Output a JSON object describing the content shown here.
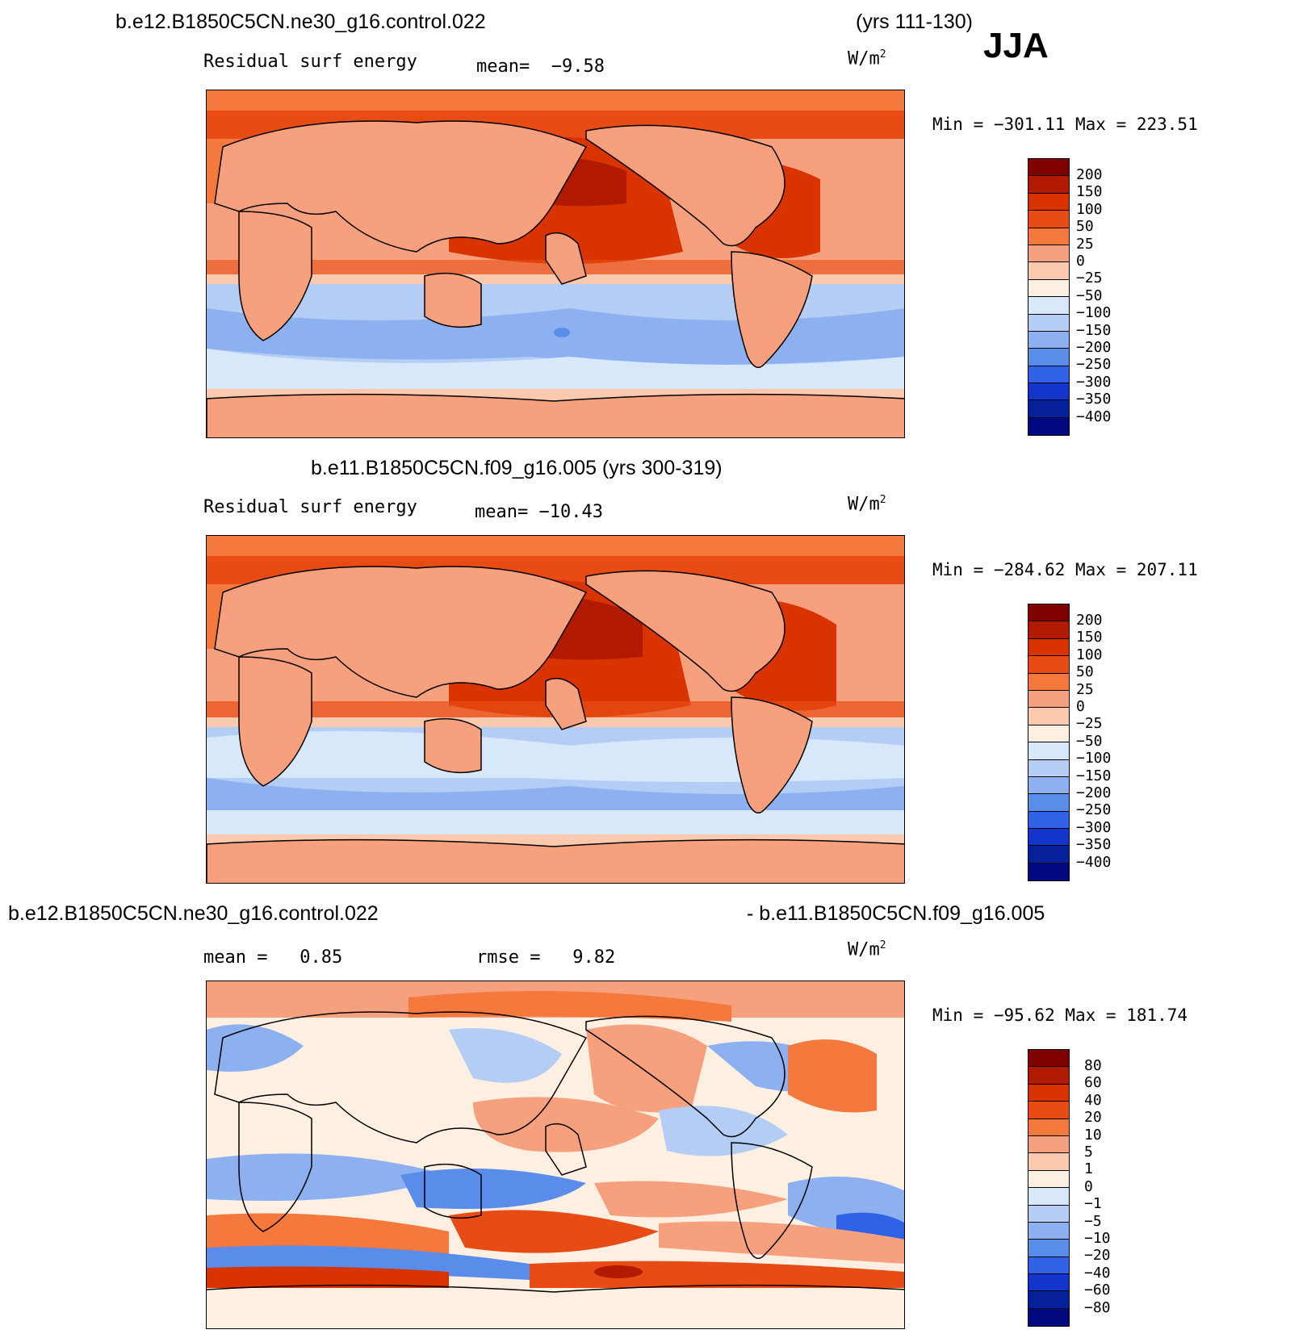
{
  "season": "JJA",
  "panels": [
    {
      "id": "top",
      "case_title": "b.e12.B1850C5CN.ne30_g16.control.022",
      "years": "(yrs 111-130)",
      "left_label": "Residual surf energy",
      "mean_text": "mean=  −9.58",
      "units": "W/m",
      "units_exp": "2",
      "minmax": "Min = −301.11 Max = 223.51"
    },
    {
      "id": "middle",
      "case_title": "b.e11.B1850C5CN.f09_g16.005 (yrs 300-319)",
      "left_label": "Residual surf energy",
      "mean_text": "mean= −10.43",
      "units": "W/m",
      "units_exp": "2",
      "minmax": "Min = −284.62 Max = 207.11"
    },
    {
      "id": "bottom",
      "case_title_left": "b.e12.B1850C5CN.ne30_g16.control.022",
      "case_title_right": "- b.e11.B1850C5CN.f09_g16.005",
      "mean_text": "mean =   0.85",
      "rmse_text": "rmse =   9.82",
      "units": "W/m",
      "units_exp": "2",
      "minmax": "Min = −95.62 Max = 181.74"
    }
  ],
  "colorbar_abs": {
    "labels": [
      "200",
      "150",
      "100",
      "50",
      "25",
      "0",
      "−25",
      "−50",
      "−100",
      "−150",
      "−200",
      "−250",
      "−300",
      "−350",
      "−400"
    ],
    "colors": [
      "#800000",
      "#b21a00",
      "#d93300",
      "#e84c14",
      "#f5783c",
      "#f6a07e",
      "#fac9ae",
      "#fdf0e2",
      "#d6e8fa",
      "#b3cdf5",
      "#8cb0f0",
      "#5a8cea",
      "#2f62e6",
      "#1236cc",
      "#062099",
      "#000880"
    ]
  },
  "colorbar_diff": {
    "labels": [
      "80",
      "60",
      "40",
      "20",
      "10",
      "5",
      "1",
      "0",
      "−1",
      "−5",
      "−10",
      "−20",
      "−40",
      "−60",
      "−80"
    ],
    "colors": [
      "#800000",
      "#b21a00",
      "#d93300",
      "#e84c14",
      "#f5783c",
      "#f6a07e",
      "#fac9ae",
      "#fdf0e2",
      "#d6e8fa",
      "#b3cdf5",
      "#8cb0f0",
      "#5a8cea",
      "#2f62e6",
      "#1236cc",
      "#062099",
      "#000880"
    ]
  }
}
